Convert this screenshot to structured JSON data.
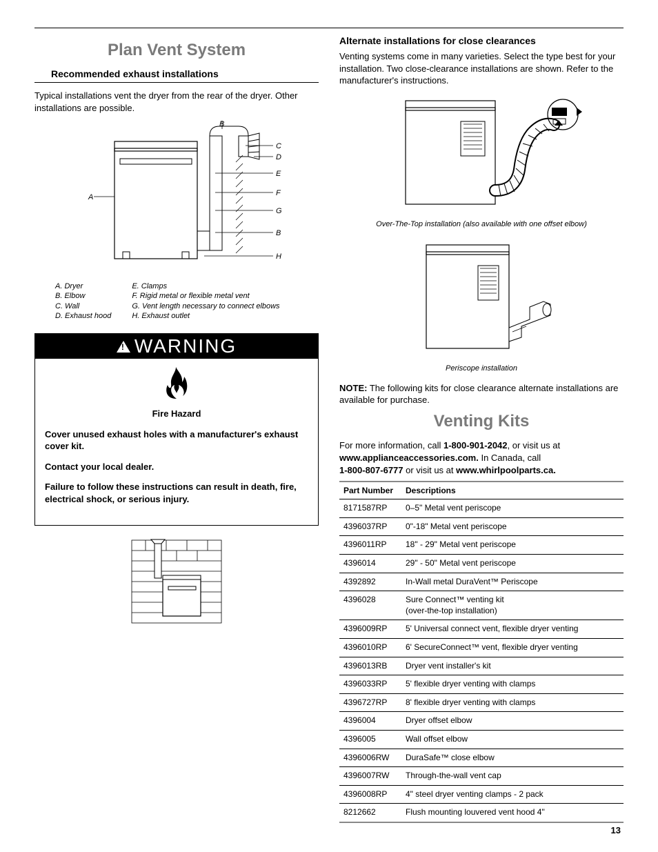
{
  "page_number": "13",
  "left": {
    "title": "Plan Vent System",
    "subhead": "Recommended exhaust installations",
    "intro": "Typical installations vent the dryer from the rear of the dryer. Other installations are possible.",
    "diagram_labels": [
      "A",
      "B",
      "C",
      "D",
      "E",
      "F",
      "G",
      "B",
      "H"
    ],
    "legend_left": [
      "A.  Dryer",
      "B.  Elbow",
      "C.  Wall",
      "D.  Exhaust hood"
    ],
    "legend_right": [
      "E.  Clamps",
      "F.  Rigid metal or flexible metal vent",
      "G.  Vent length necessary to connect elbows",
      "H.  Exhaust outlet"
    ],
    "warning": {
      "label": "WARNING",
      "title": "Fire Hazard",
      "lines": [
        "Cover unused exhaust holes with a manufacturer's exhaust cover kit.",
        "Contact your local dealer.",
        "Failure to follow these instructions can result in death, fire, electrical shock, or serious injury."
      ]
    }
  },
  "right": {
    "alt_head": "Alternate installations for close clearances",
    "alt_text": "Venting systems come in many varieties. Select the type best for your installation. Two close-clearance installations are shown. Refer to the manufacturer's instructions.",
    "caption1": "Over-The-Top installation (also available with one offset elbow)",
    "caption2": "Periscope installation",
    "note_prefix": "NOTE:",
    "note_text": " The following kits for close clearance alternate installations are available for purchase.",
    "kits_title": "Venting Kits",
    "kits_intro_parts": {
      "p1": "For more information, call ",
      "phone1": "1-800-901-2042",
      "p2": ", or visit us at ",
      "url1": "www.applianceaccessories.com.",
      "p3": " In Canada, call ",
      "phone2": "1-800-807-6777",
      "p4": " or visit us at ",
      "url2": "www.whirlpoolparts.ca."
    },
    "table": {
      "headers": [
        "Part Number",
        "Descriptions"
      ],
      "rows": [
        [
          "8171587RP",
          "0–5\" Metal vent periscope"
        ],
        [
          "4396037RP",
          "0\"-18\" Metal vent periscope"
        ],
        [
          "4396011RP",
          "18\" - 29\" Metal vent periscope"
        ],
        [
          "4396014",
          "29\" - 50\" Metal vent periscope"
        ],
        [
          "4392892",
          "In-Wall metal DuraVent™ Periscope"
        ],
        [
          "4396028",
          "Sure Connect™ venting kit\n(over-the-top installation)"
        ],
        [
          "4396009RP",
          "5' Universal connect vent, flexible dryer venting"
        ],
        [
          "4396010RP",
          "6' SecureConnect™ vent, flexible dryer venting"
        ],
        [
          "4396013RB",
          "Dryer vent installer's kit"
        ],
        [
          "4396033RP",
          "5' flexible dryer venting with clamps"
        ],
        [
          "4396727RP",
          "8' flexible dryer venting with clamps"
        ],
        [
          "4396004",
          "Dryer offset elbow"
        ],
        [
          "4396005",
          "Wall offset elbow"
        ],
        [
          "4396006RW",
          "DuraSafe™ close elbow"
        ],
        [
          "4396007RW",
          "Through-the-wall vent cap"
        ],
        [
          "4396008RP",
          "4\" steel dryer venting clamps - 2 pack"
        ],
        [
          "8212662",
          "Flush mounting louvered vent hood 4\""
        ]
      ]
    }
  }
}
